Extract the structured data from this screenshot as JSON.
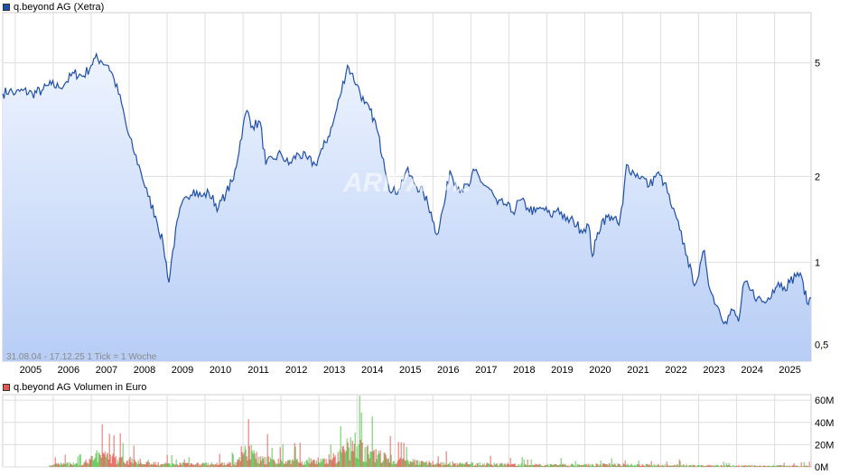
{
  "chart_data": [
    {
      "type": "area",
      "legend": "q.beyond AG (Xetra)",
      "info_text": "31.08.04 - 17.12.25    1 Tick = 1 Woche",
      "watermark": "ARIVA.DE",
      "y_scale": "log",
      "ylim": [
        0.45,
        7.5
      ],
      "xlim": [
        2004.67,
        2025.96
      ],
      "y_ticks": [
        {
          "value": 5,
          "label": "5"
        },
        {
          "value": 2,
          "label": "2"
        },
        {
          "value": 1,
          "label": "1"
        },
        {
          "value": 0.5,
          "label": "0,5"
        }
      ],
      "x_ticks": [
        "2005",
        "2006",
        "2007",
        "2008",
        "2009",
        "2010",
        "2011",
        "2012",
        "2013",
        "2014",
        "2015",
        "2016",
        "2017",
        "2018",
        "2019",
        "2020",
        "2021",
        "2022",
        "2023",
        "2024",
        "2025"
      ],
      "colors": {
        "line": "#1f4fa8",
        "fill_top": "#eef4ff",
        "fill_bottom": "#b7cdf5",
        "grid": "#dddddd"
      },
      "grid": true,
      "x": [
        2004.67,
        2004.85,
        2005.0,
        2005.2,
        2005.45,
        2005.7,
        2005.95,
        2006.15,
        2006.35,
        2006.55,
        2006.8,
        2007.0,
        2007.1,
        2007.25,
        2007.45,
        2007.6,
        2007.8,
        2007.95,
        2008.1,
        2008.3,
        2008.5,
        2008.7,
        2008.9,
        2009.05,
        2009.15,
        2009.3,
        2009.5,
        2009.7,
        2009.9,
        2010.1,
        2010.35,
        2010.55,
        2010.75,
        2011.0,
        2011.1,
        2011.25,
        2011.45,
        2011.6,
        2011.8,
        2012.0,
        2012.2,
        2012.45,
        2012.7,
        2012.9,
        2013.1,
        2013.35,
        2013.55,
        2013.75,
        2013.85,
        2014.0,
        2014.2,
        2014.45,
        2014.7,
        2014.9,
        2015.1,
        2015.3,
        2015.5,
        2015.75,
        2015.95,
        2016.1,
        2016.3,
        2016.45,
        2016.6,
        2016.75,
        2016.95,
        2017.1,
        2017.3,
        2017.5,
        2017.7,
        2017.9,
        2018.1,
        2018.3,
        2018.5,
        2018.7,
        2018.9,
        2019.1,
        2019.3,
        2019.5,
        2019.7,
        2019.9,
        2020.1,
        2020.2,
        2020.3,
        2020.45,
        2020.7,
        2020.9,
        2021.0,
        2021.1,
        2021.3,
        2021.5,
        2021.7,
        2021.9,
        2022.1,
        2022.3,
        2022.5,
        2022.7,
        2022.85,
        2023.0,
        2023.15,
        2023.3,
        2023.5,
        2023.7,
        2023.9,
        2024.05,
        2024.2,
        2024.35,
        2024.55,
        2024.75,
        2024.95,
        2025.1,
        2025.25,
        2025.4,
        2025.6,
        2025.75,
        2025.85,
        2025.96
      ],
      "values": [
        3.9,
        4.0,
        3.9,
        4.0,
        3.9,
        4.0,
        4.2,
        4.1,
        4.3,
        4.6,
        4.5,
        4.9,
        5.2,
        5.1,
        4.9,
        4.4,
        3.6,
        2.9,
        2.5,
        2.1,
        1.7,
        1.45,
        1.15,
        0.85,
        1.1,
        1.45,
        1.7,
        1.8,
        1.7,
        1.75,
        1.55,
        1.75,
        1.95,
        3.0,
        3.4,
        3.0,
        3.1,
        2.2,
        2.3,
        2.4,
        2.2,
        2.4,
        2.3,
        2.2,
        2.5,
        3.0,
        3.8,
        4.9,
        4.6,
        4.2,
        3.6,
        3.2,
        2.3,
        1.75,
        1.8,
        2.1,
        1.9,
        1.75,
        1.5,
        1.25,
        1.6,
        2.1,
        1.9,
        1.8,
        1.85,
        2.1,
        1.9,
        1.8,
        1.6,
        1.6,
        1.5,
        1.65,
        1.55,
        1.5,
        1.55,
        1.45,
        1.55,
        1.4,
        1.4,
        1.3,
        1.35,
        1.05,
        1.2,
        1.4,
        1.45,
        1.35,
        1.6,
        2.2,
        2.05,
        2.0,
        1.85,
        2.05,
        1.9,
        1.55,
        1.3,
        1.05,
        0.85,
        0.9,
        1.1,
        0.8,
        0.7,
        0.62,
        0.68,
        0.62,
        0.85,
        0.8,
        0.75,
        0.72,
        0.8,
        0.85,
        0.82,
        0.85,
        0.92,
        0.85,
        0.72,
        0.75
      ]
    },
    {
      "type": "bar",
      "legend": "q.beyond AG Volumen in Euro",
      "y_ticks": [
        {
          "value": 60,
          "label": "60M"
        },
        {
          "value": 40,
          "label": "40M"
        },
        {
          "value": 20,
          "label": "20M"
        },
        {
          "value": 0,
          "label": "0M"
        }
      ],
      "ylim": [
        0,
        65
      ],
      "colors": {
        "up": "#55c24a",
        "down": "#e15a4f"
      },
      "x_start": 2005.9,
      "x_end": 2025.96,
      "profile": [
        {
          "x": 2006.0,
          "level": 2.5
        },
        {
          "x": 2006.8,
          "level": 4
        },
        {
          "x": 2007.1,
          "level": 12
        },
        {
          "x": 2007.6,
          "level": 9
        },
        {
          "x": 2008.2,
          "level": 6
        },
        {
          "x": 2009.0,
          "level": 3
        },
        {
          "x": 2010.0,
          "level": 3
        },
        {
          "x": 2010.8,
          "level": 4
        },
        {
          "x": 2011.0,
          "level": 22
        },
        {
          "x": 2011.3,
          "level": 12
        },
        {
          "x": 2011.8,
          "level": 6
        },
        {
          "x": 2012.5,
          "level": 6
        },
        {
          "x": 2013.0,
          "level": 7
        },
        {
          "x": 2013.5,
          "level": 10
        },
        {
          "x": 2013.85,
          "level": 26
        },
        {
          "x": 2014.2,
          "level": 16
        },
        {
          "x": 2015.0,
          "level": 7
        },
        {
          "x": 2016.0,
          "level": 4
        },
        {
          "x": 2017.5,
          "level": 3
        },
        {
          "x": 2019.0,
          "level": 2
        },
        {
          "x": 2021.0,
          "level": 2.5
        },
        {
          "x": 2023.0,
          "level": 1.5
        },
        {
          "x": 2025.96,
          "level": 1.2
        }
      ]
    }
  ]
}
